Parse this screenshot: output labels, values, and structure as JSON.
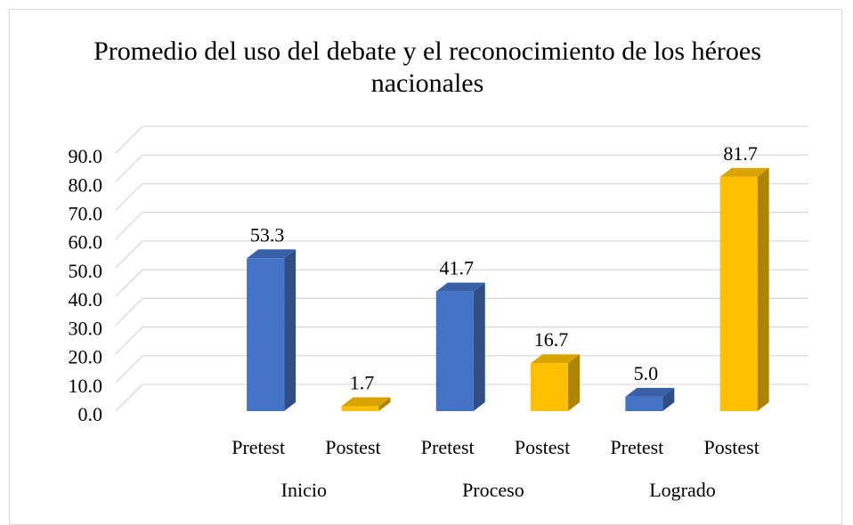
{
  "chart_data": {
    "type": "bar3d",
    "title": "Promedio del uso del debate y el reconocimiento de los héroes nacionales",
    "categories": [
      "Pretest",
      "Postest",
      "Pretest",
      "Postest",
      "Pretest",
      "Postest"
    ],
    "groups": [
      "Inicio",
      "Proceso",
      "Logrado"
    ],
    "values": [
      53.3,
      1.7,
      41.7,
      16.7,
      5.0,
      81.7
    ],
    "value_labels": [
      "53.3",
      "1.7",
      "41.7",
      "16.7",
      "5.0",
      "81.7"
    ],
    "colors": [
      "#4472c4",
      "#ffc000",
      "#4472c4",
      "#ffc000",
      "#4472c4",
      "#ffc000"
    ],
    "ylim": [
      0,
      90
    ],
    "yticks": [
      {
        "value": 0,
        "label": "0.0"
      },
      {
        "value": 10,
        "label": "10.0"
      },
      {
        "value": 20,
        "label": "20.0"
      },
      {
        "value": 30,
        "label": "30.0"
      },
      {
        "value": 40,
        "label": "40.0"
      },
      {
        "value": 50,
        "label": "50.0"
      },
      {
        "value": 60,
        "label": "60.0"
      },
      {
        "value": 70,
        "label": "70.0"
      },
      {
        "value": 80,
        "label": "80.0"
      },
      {
        "value": 90,
        "label": "90.0"
      }
    ],
    "grid": true
  }
}
